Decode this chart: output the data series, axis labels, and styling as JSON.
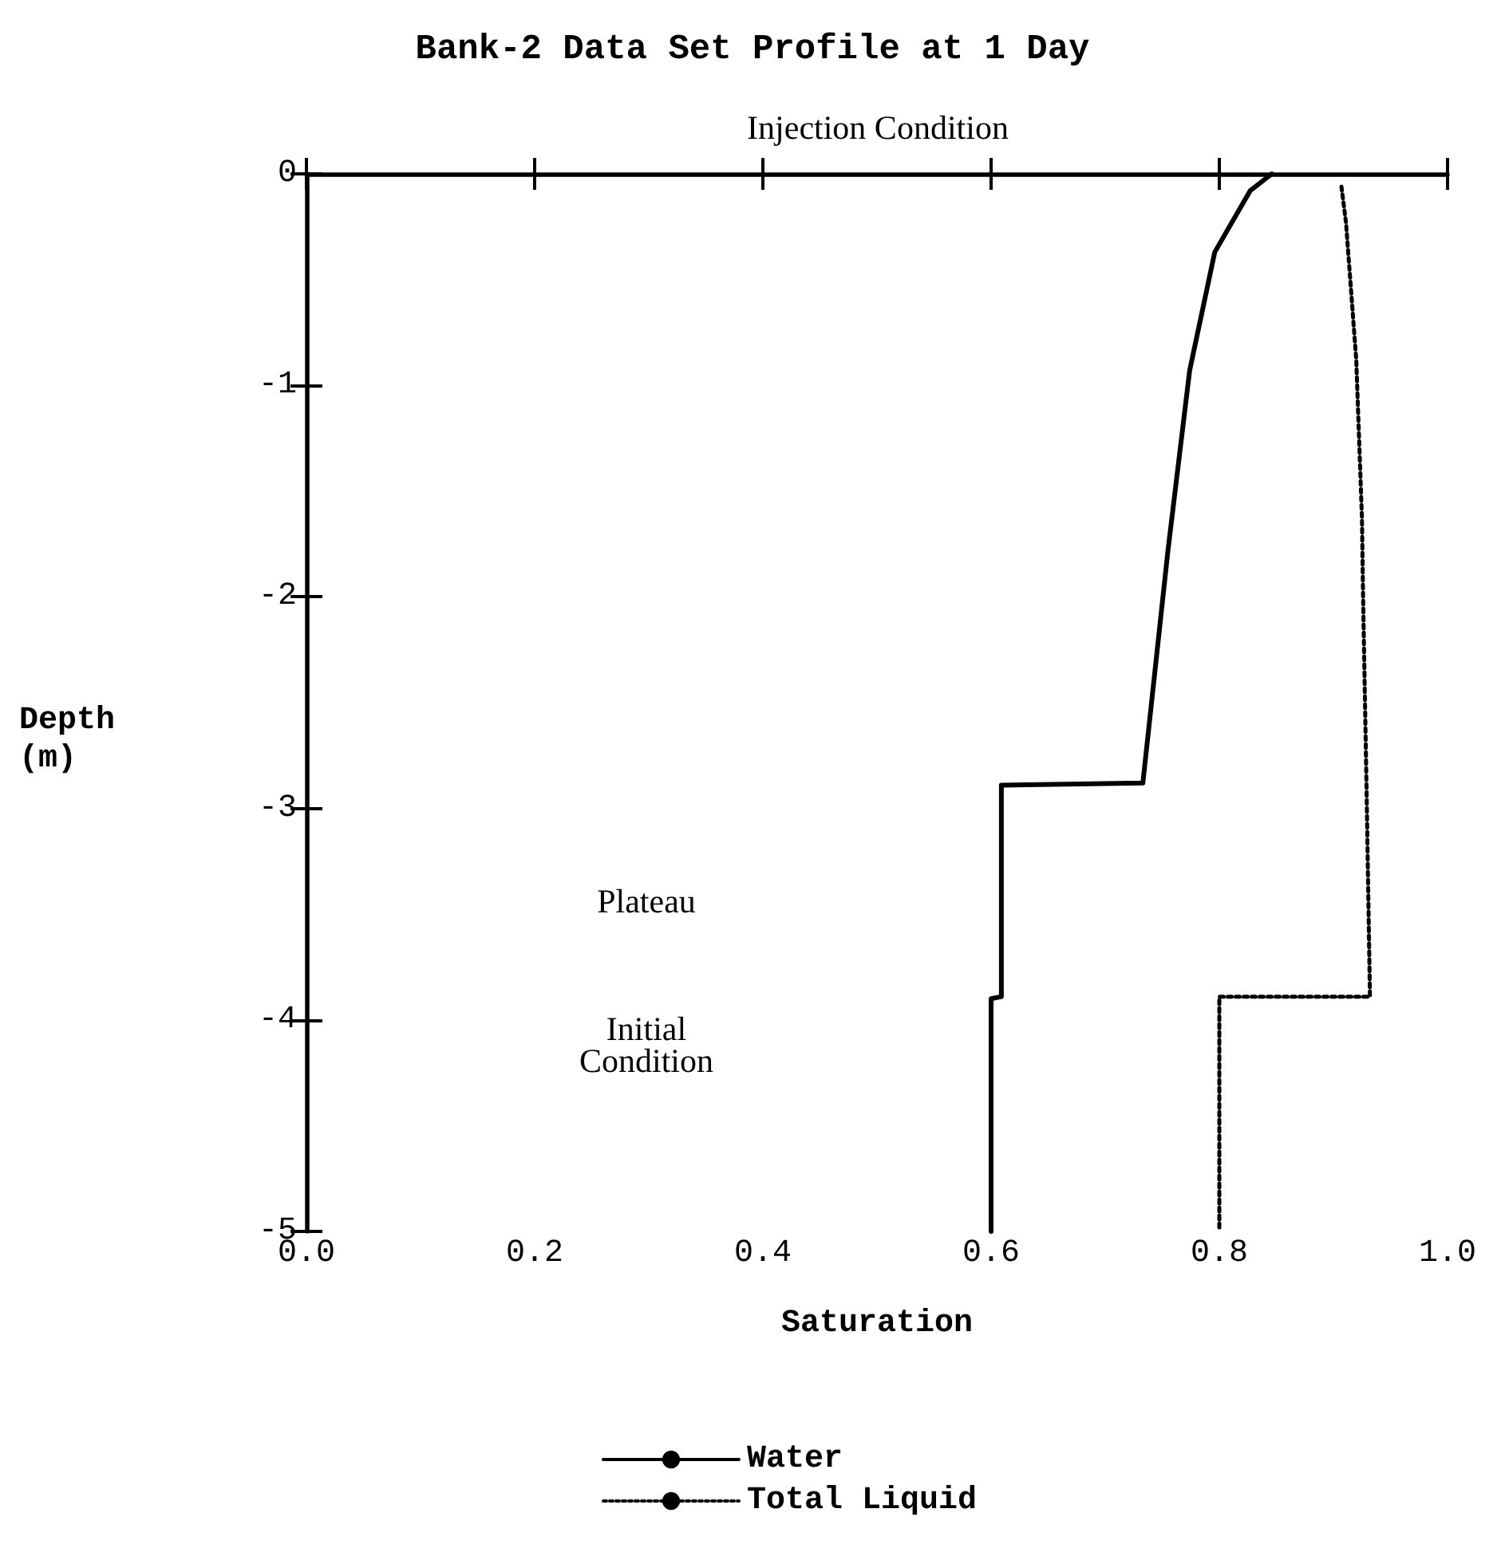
{
  "chart_data": {
    "type": "line",
    "title": "Bank-2 Data Set Profile at 1 Day",
    "xlabel": "Saturation",
    "ylabel": "Depth (m)",
    "xlim": [
      0,
      1
    ],
    "ylim": [
      -5,
      0
    ],
    "xticks": [
      {
        "value": 0,
        "label": "0.0"
      },
      {
        "value": 0.2,
        "label": "0.2"
      },
      {
        "value": 0.4,
        "label": "0.4"
      },
      {
        "value": 0.6,
        "label": "0.6"
      },
      {
        "value": 0.8,
        "label": "0.8"
      },
      {
        "value": 1,
        "label": "1.0"
      }
    ],
    "yticks": [
      -5,
      -4,
      -3,
      -2,
      -1,
      0
    ],
    "grid": false,
    "legend": "bottom",
    "marker": "none",
    "annotations": [
      "Injection Condition",
      "Plateau",
      "Initial Condition"
    ],
    "series": [
      {
        "name": "Water",
        "color": "#000000",
        "line_style": "solid",
        "x": [
          0.846,
          0.827,
          0.796,
          0.774,
          0.755,
          0.733,
          0.609,
          0.609,
          0.6,
          0.6
        ],
        "values": [
          0,
          -0.08,
          -0.37,
          -0.93,
          -1.78,
          -2.88,
          -2.89,
          -3.89,
          -3.9,
          -5
        ]
      },
      {
        "name": "Total Liquid",
        "color": "#000000",
        "line_style": "dotted",
        "x": [
          0.907,
          0.911,
          0.92,
          0.925,
          0.926,
          0.929,
          0.932,
          0.8,
          0.8
        ],
        "values": [
          -0.06,
          -0.23,
          -0.88,
          -1.63,
          -2,
          -2.9,
          -3.89,
          -3.89,
          -5
        ]
      }
    ]
  }
}
